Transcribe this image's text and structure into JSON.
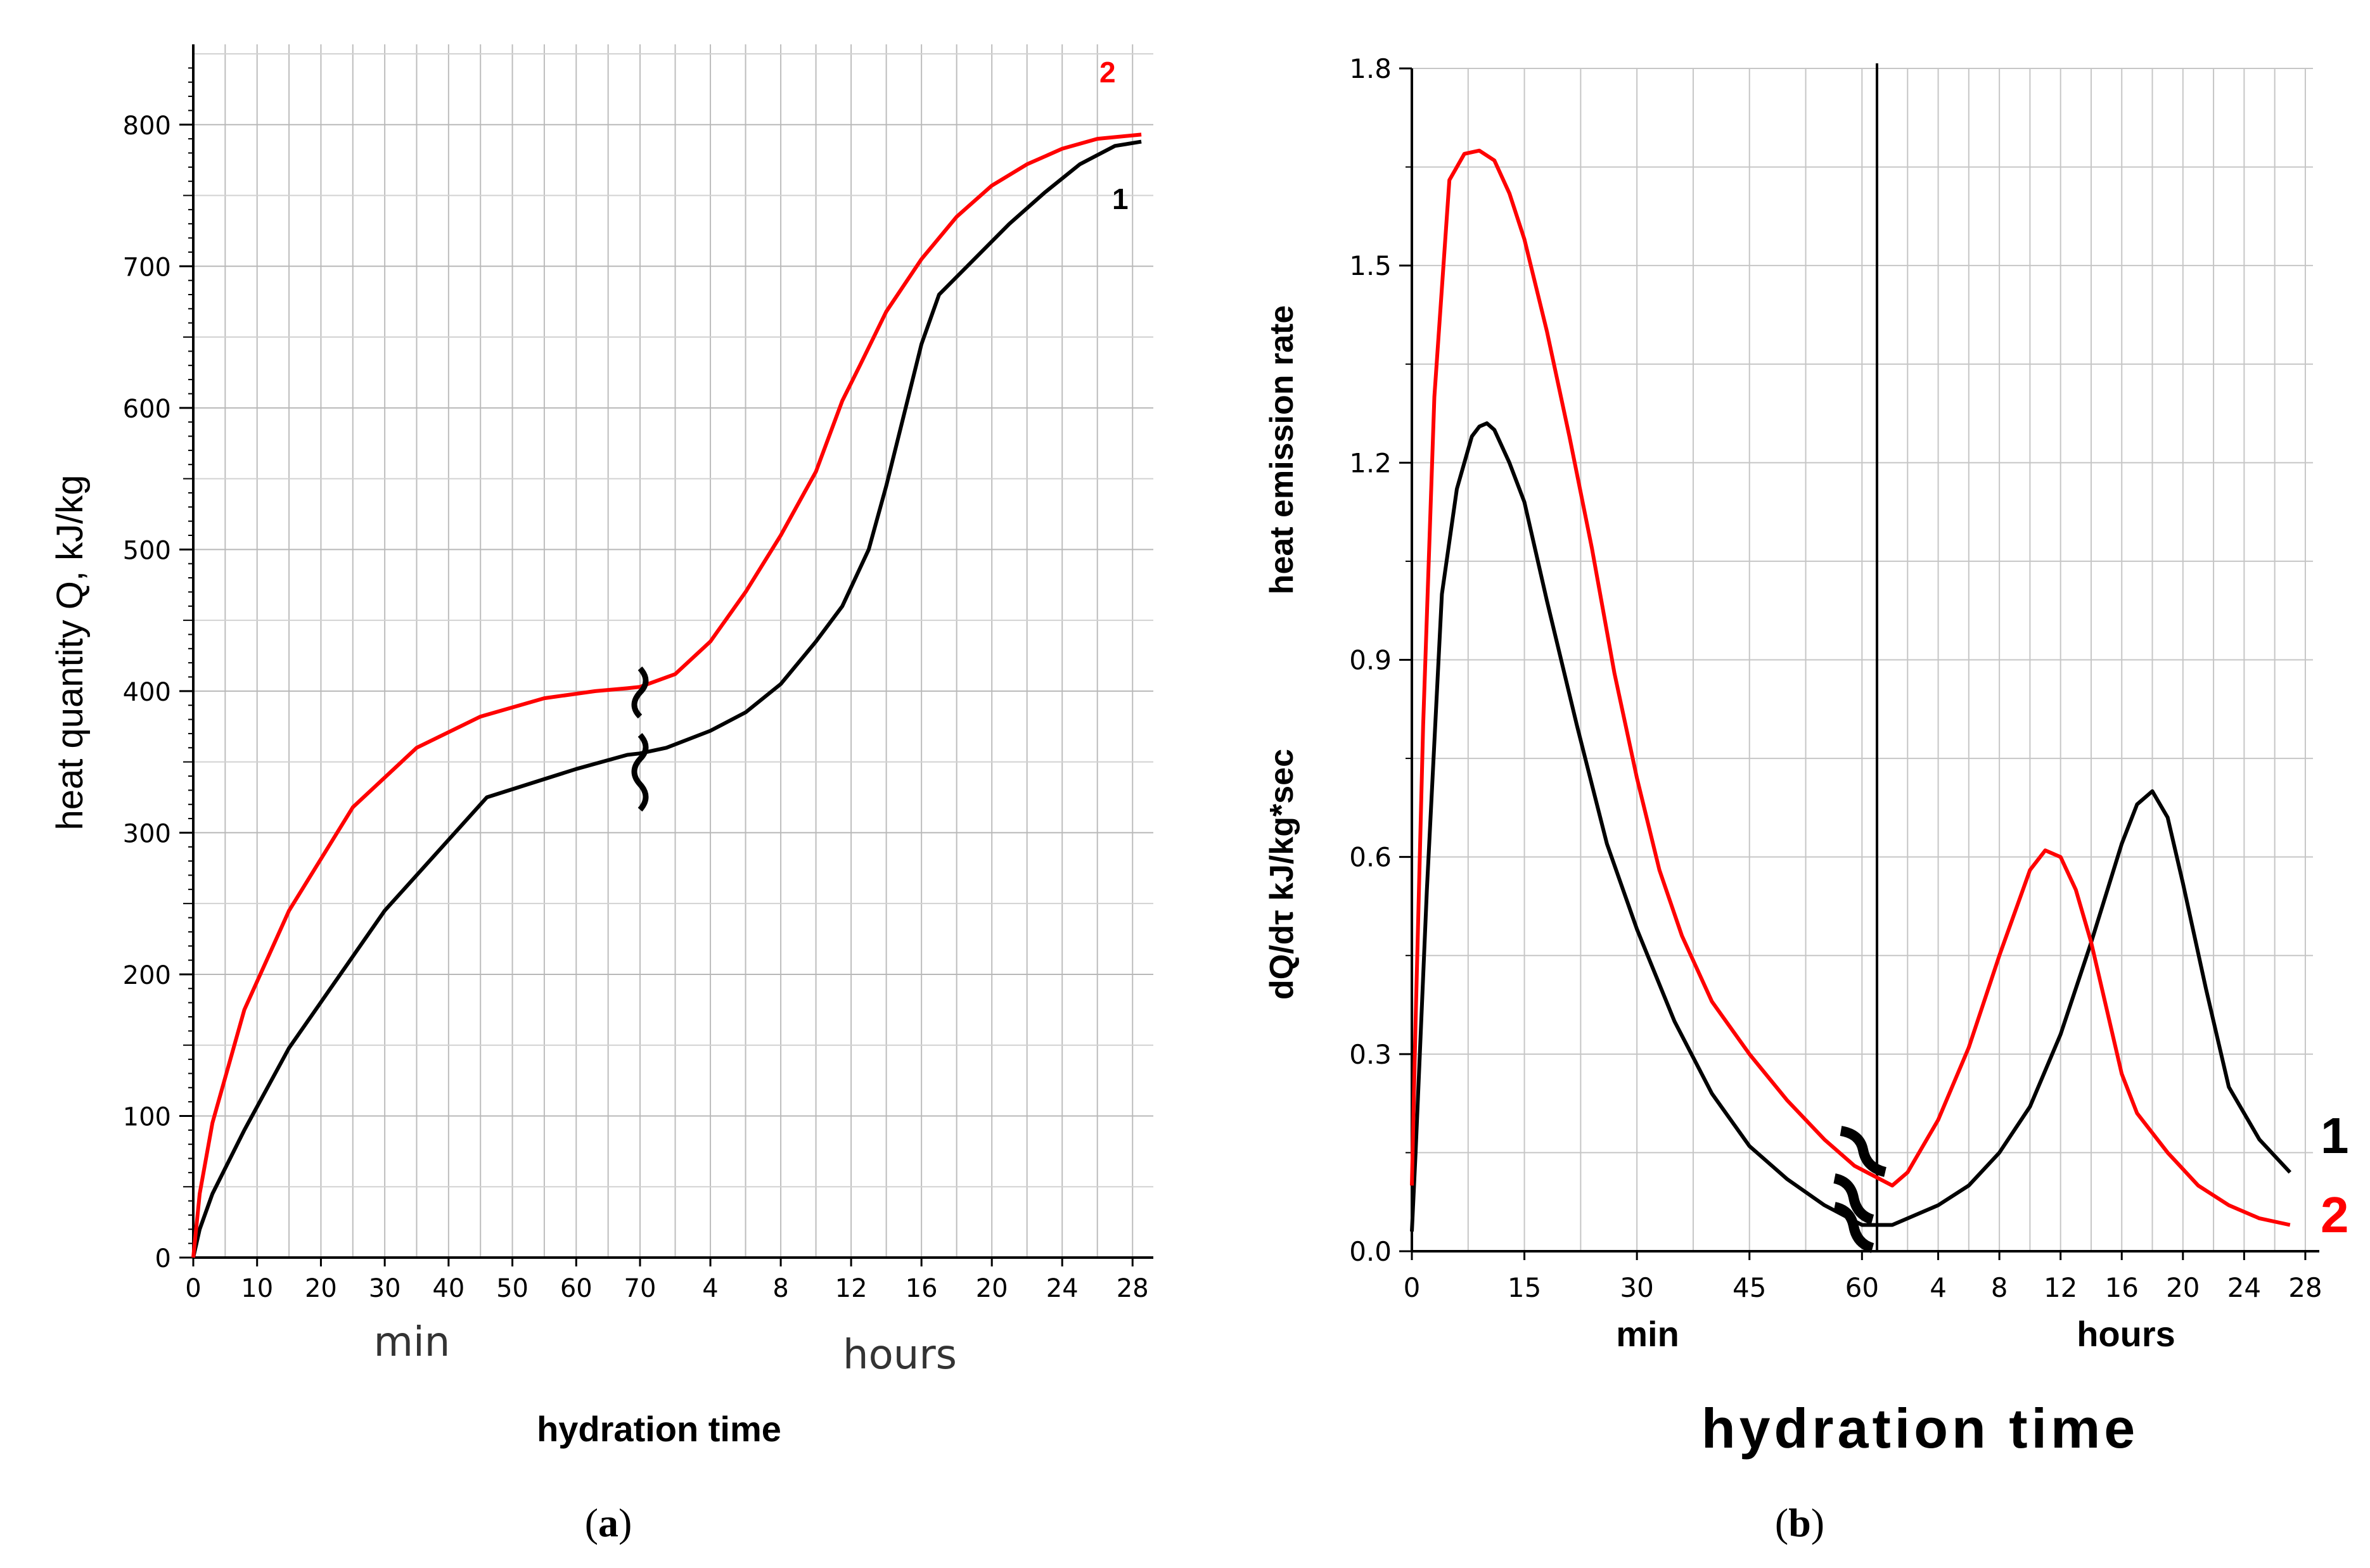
{
  "chart_data": [
    {
      "type": "line",
      "panel_caption": {
        "open": "(",
        "letter": "a",
        "close": ")"
      },
      "ylabel": "heat quantity Q, kJ/kg",
      "xlabel": "hydration time",
      "ylim": [
        0,
        850
      ],
      "yticks": [
        "0",
        "100",
        "200",
        "300",
        "400",
        "500",
        "600",
        "700",
        "800"
      ],
      "x_segments": [
        {
          "unit": "min",
          "ticks": [
            "0",
            "10",
            "20",
            "30",
            "40",
            "50",
            "60",
            "70"
          ]
        },
        {
          "unit": "hours",
          "ticks": [
            "4",
            "8",
            "12",
            "16",
            "20",
            "24",
            "28"
          ]
        }
      ],
      "series": [
        {
          "name": "1",
          "color": "#000000",
          "x": [
            0,
            1,
            3,
            8,
            15,
            30,
            46,
            60,
            68,
            70,
            1.5,
            4,
            6,
            8,
            10,
            11.5,
            13,
            14,
            15,
            16,
            17,
            19,
            21,
            23,
            25,
            27,
            28.5
          ],
          "values": [
            0,
            20,
            45,
            90,
            148,
            245,
            325,
            345,
            355,
            356,
            360,
            372,
            385,
            405,
            435,
            460,
            500,
            545,
            595,
            645,
            680,
            705,
            730,
            752,
            772,
            785,
            788
          ]
        },
        {
          "name": "2",
          "color": "#ff0000",
          "x": [
            0,
            1,
            3,
            8,
            15,
            25,
            35,
            45,
            55,
            63,
            68,
            70,
            2,
            4,
            6,
            8,
            10,
            11.5,
            12.5,
            14,
            16,
            18,
            20,
            22,
            24,
            26,
            28.5
          ],
          "values": [
            0,
            45,
            95,
            175,
            245,
            318,
            360,
            382,
            395,
            400,
            402,
            403,
            412,
            435,
            470,
            510,
            555,
            605,
            630,
            668,
            705,
            735,
            757,
            772,
            783,
            790,
            793
          ]
        }
      ]
    },
    {
      "type": "line",
      "panel_caption": {
        "open": "(",
        "letter": "b",
        "close": ")"
      },
      "ylabel_left": "dQ/dτ   kJ/kg*sec",
      "ylabel_right": "heat emission rate",
      "xlabel": "hydration time",
      "ylim": [
        0,
        1.8
      ],
      "yticks": [
        "0.0",
        "0.3",
        "0.6",
        "0.9",
        "1.2",
        "1.5",
        "1.8"
      ],
      "x_segments": [
        {
          "unit": "min",
          "ticks": [
            "0",
            "15",
            "30",
            "45",
            "60"
          ]
        },
        {
          "unit": "hours",
          "ticks": [
            "4",
            "8",
            "12",
            "16",
            "20",
            "24",
            "28"
          ]
        }
      ],
      "series": [
        {
          "name": "1",
          "color": "#000000",
          "min_x": [
            0,
            0.5,
            2,
            4,
            6,
            8,
            9,
            10,
            11,
            13,
            15,
            18,
            22,
            26,
            30,
            35,
            40,
            45,
            50,
            55,
            60
          ],
          "min_values": [
            0.03,
            0.15,
            0.55,
            1.0,
            1.16,
            1.24,
            1.255,
            1.26,
            1.25,
            1.2,
            1.14,
            0.99,
            0.8,
            0.62,
            0.49,
            0.35,
            0.24,
            0.16,
            0.11,
            0.07,
            0.04
          ],
          "hours_x": [
            1,
            2,
            4,
            6,
            8,
            10,
            12,
            14,
            16,
            17,
            18,
            19,
            20,
            21.5,
            23,
            25,
            27
          ],
          "hours_values": [
            0.04,
            0.05,
            0.07,
            0.1,
            0.15,
            0.22,
            0.33,
            0.47,
            0.62,
            0.68,
            0.7,
            0.66,
            0.56,
            0.4,
            0.25,
            0.17,
            0.12
          ]
        },
        {
          "name": "2",
          "color": "#ff0000",
          "min_x": [
            0,
            0.5,
            1.5,
            3,
            5,
            7,
            9,
            11,
            13,
            15,
            18,
            21,
            24,
            27,
            30,
            33,
            36,
            40,
            45,
            50,
            55,
            59
          ],
          "min_values": [
            0.1,
            0.35,
            0.8,
            1.3,
            1.63,
            1.67,
            1.675,
            1.66,
            1.61,
            1.54,
            1.4,
            1.24,
            1.07,
            0.88,
            0.72,
            0.58,
            0.48,
            0.38,
            0.3,
            0.23,
            0.17,
            0.13
          ],
          "hours_x": [
            1,
            2,
            4,
            6,
            8,
            10,
            11,
            12,
            13,
            14,
            15,
            16,
            17,
            19,
            21,
            23,
            25,
            27
          ],
          "hours_values": [
            0.1,
            0.12,
            0.2,
            0.31,
            0.45,
            0.58,
            0.61,
            0.6,
            0.55,
            0.47,
            0.37,
            0.27,
            0.21,
            0.15,
            0.1,
            0.07,
            0.05,
            0.04
          ]
        }
      ]
    }
  ]
}
